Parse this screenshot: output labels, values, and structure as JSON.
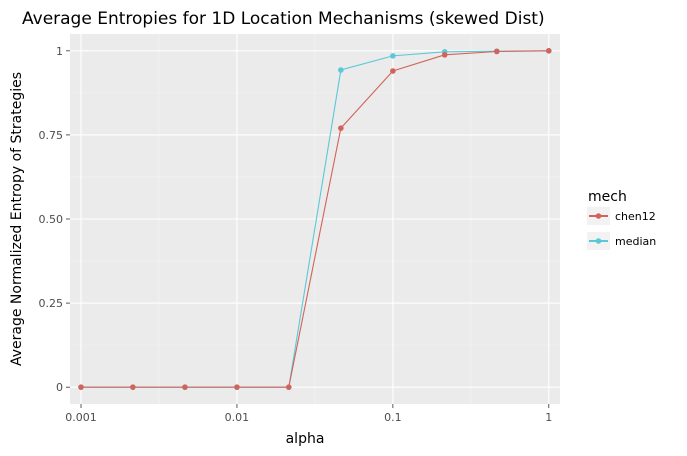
{
  "chart_data": {
    "type": "line",
    "title": "Average Entropies for 1D Location Mechanisms (skewed Dist)",
    "xlabel": "alpha",
    "ylabel": "Average Normalized Entropy of Strategies",
    "x_scale": "log10",
    "xlim": [
      0.00085,
      1.18
    ],
    "ylim": [
      -0.05,
      1.05
    ],
    "x_ticks": [
      {
        "value": 0.001,
        "label": "0.001"
      },
      {
        "value": 0.01,
        "label": "0.01"
      },
      {
        "value": 0.1,
        "label": "0.1"
      },
      {
        "value": 1,
        "label": "1"
      }
    ],
    "y_ticks": [
      {
        "value": 0,
        "label": "0"
      },
      {
        "value": 0.25,
        "label": "0.25"
      },
      {
        "value": 0.5,
        "label": "0.50"
      },
      {
        "value": 0.75,
        "label": "0.75"
      },
      {
        "value": 1,
        "label": "1"
      }
    ],
    "grid": true,
    "legend": {
      "title": "mech",
      "position": "right"
    },
    "x": [
      0.001,
      0.00215,
      0.00464,
      0.01,
      0.0215,
      0.0464,
      0.1,
      0.215,
      0.464,
      1
    ],
    "series": [
      {
        "name": "chen12",
        "color": "#d2635a",
        "values": [
          0,
          0,
          0,
          0,
          0,
          0.77,
          0.94,
          0.988,
          0.998,
          1
        ]
      },
      {
        "name": "median",
        "color": "#5bc8d8",
        "values": [
          0,
          0,
          0,
          0,
          0,
          0.943,
          0.985,
          0.997,
          0.999,
          1
        ]
      }
    ]
  }
}
